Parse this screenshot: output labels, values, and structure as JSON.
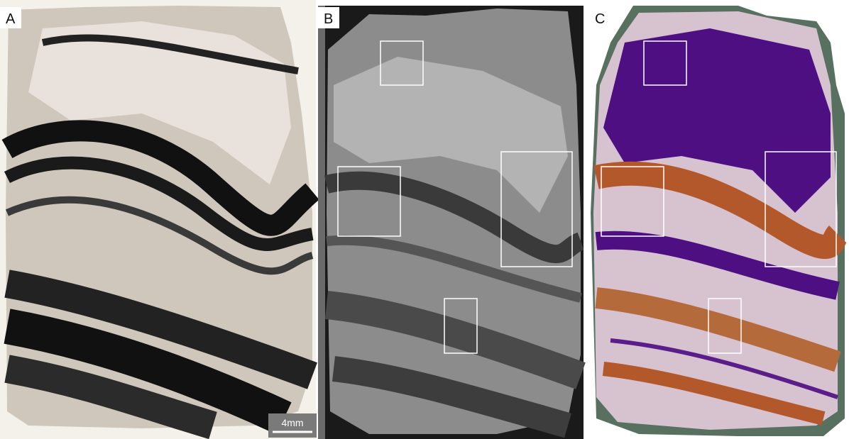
{
  "panels": [
    {
      "label": "A"
    },
    {
      "label": "B"
    },
    {
      "label": "C"
    }
  ],
  "scale_bar": {
    "label": "4mm"
  }
}
